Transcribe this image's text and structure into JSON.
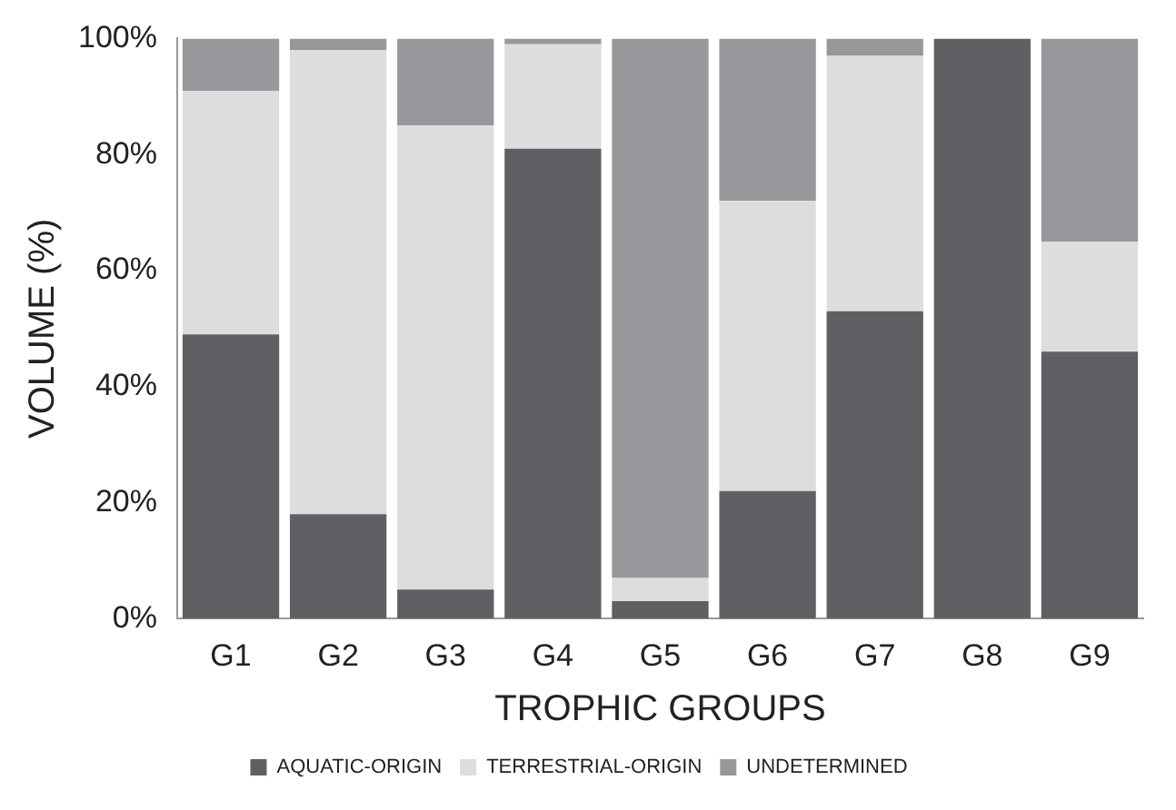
{
  "chart_data": {
    "type": "bar",
    "stacked": true,
    "xlabel": "TROPHIC GROUPS",
    "ylabel": "VOLUME (%)",
    "categories": [
      "G1",
      "G2",
      "G3",
      "G4",
      "G5",
      "G6",
      "G7",
      "G8",
      "G9"
    ],
    "series": [
      {
        "name": "AQUATIC-ORIGIN",
        "color": "#5f6064",
        "values": [
          49,
          18,
          5,
          81,
          3,
          22,
          53,
          100,
          46
        ]
      },
      {
        "name": "TERRESTRIAL-ORIGIN",
        "color": "#dcdddf",
        "values": [
          42,
          80,
          80,
          18,
          4,
          50,
          44,
          0,
          19
        ]
      },
      {
        "name": "UNDETERMINED",
        "color": "#97989b",
        "values": [
          9,
          2,
          15,
          1,
          93,
          28,
          3,
          0,
          35
        ]
      }
    ],
    "ylim": [
      0,
      100
    ],
    "yticks": [
      {
        "value": 0,
        "label": "0%"
      },
      {
        "value": 20,
        "label": "20%"
      },
      {
        "value": 40,
        "label": "40%"
      },
      {
        "value": 60,
        "label": "60%"
      },
      {
        "value": 80,
        "label": "80%"
      },
      {
        "value": 100,
        "label": "100%"
      }
    ],
    "grid": false,
    "legend": "bottom"
  }
}
